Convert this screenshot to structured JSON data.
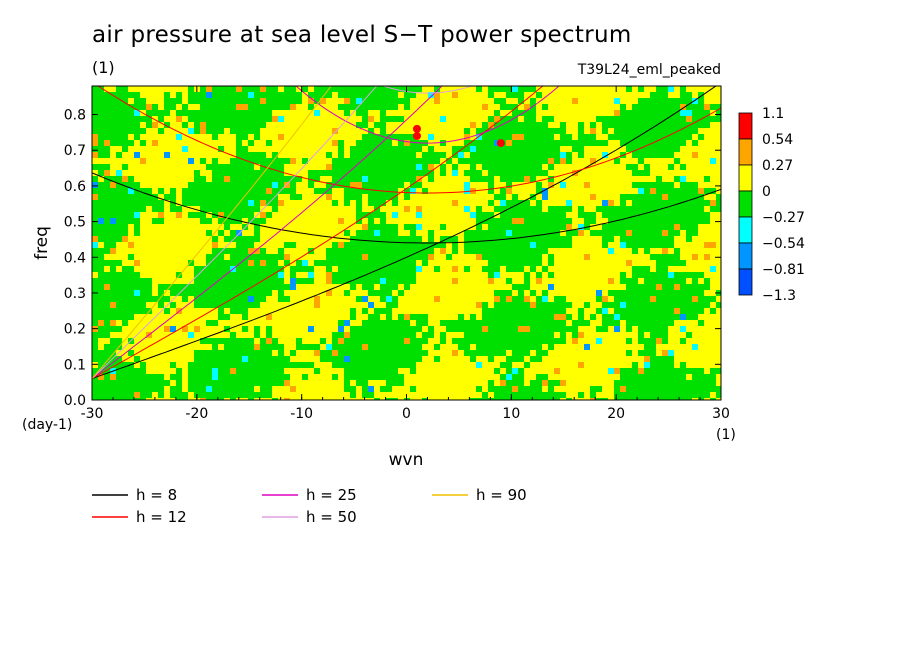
{
  "title": "air pressure at sea level S−T power spectrum",
  "units": "(1)",
  "run_label": "T39L24_eml_peaked",
  "chart_data": {
    "type": "heatmap",
    "xlabel": "wvn",
    "ylabel": "freq",
    "x_unit": "(1)",
    "y_unit": "(day-1)",
    "xlim": [
      -30,
      30
    ],
    "ylim": [
      0,
      0.88
    ],
    "x_ticks": [
      "-30",
      "-20",
      "-10",
      "0",
      "10",
      "20",
      "30"
    ],
    "y_ticks": [
      "0.0",
      "0.1",
      "0.2",
      "0.3",
      "0.4",
      "0.5",
      "0.6",
      "0.7",
      "0.8"
    ],
    "colorbar": {
      "labels": [
        "1.1",
        "0.54",
        "0.27",
        "0",
        "−0.27",
        "−0.54",
        "−0.81",
        "−1.3"
      ],
      "colors": [
        "#ff0000",
        "#ffa500",
        "#ffff00",
        "#00e000",
        "#00ffff",
        "#0096ff",
        "#0050ff"
      ]
    },
    "field_description": "mostly yellow (0 to 0.27) and green (-0.27 to 0) patches with scattered orange, cyan and blue spots",
    "dispersion_curves": [
      {
        "name": "h =  8",
        "color": "#000000"
      },
      {
        "name": "h = 12",
        "color": "#ff0000"
      },
      {
        "name": "h = 25",
        "color": "#e000c0"
      },
      {
        "name": "h = 50",
        "color": "#e0a0e0"
      },
      {
        "name": "h = 90",
        "color": "#f0c000"
      }
    ]
  }
}
